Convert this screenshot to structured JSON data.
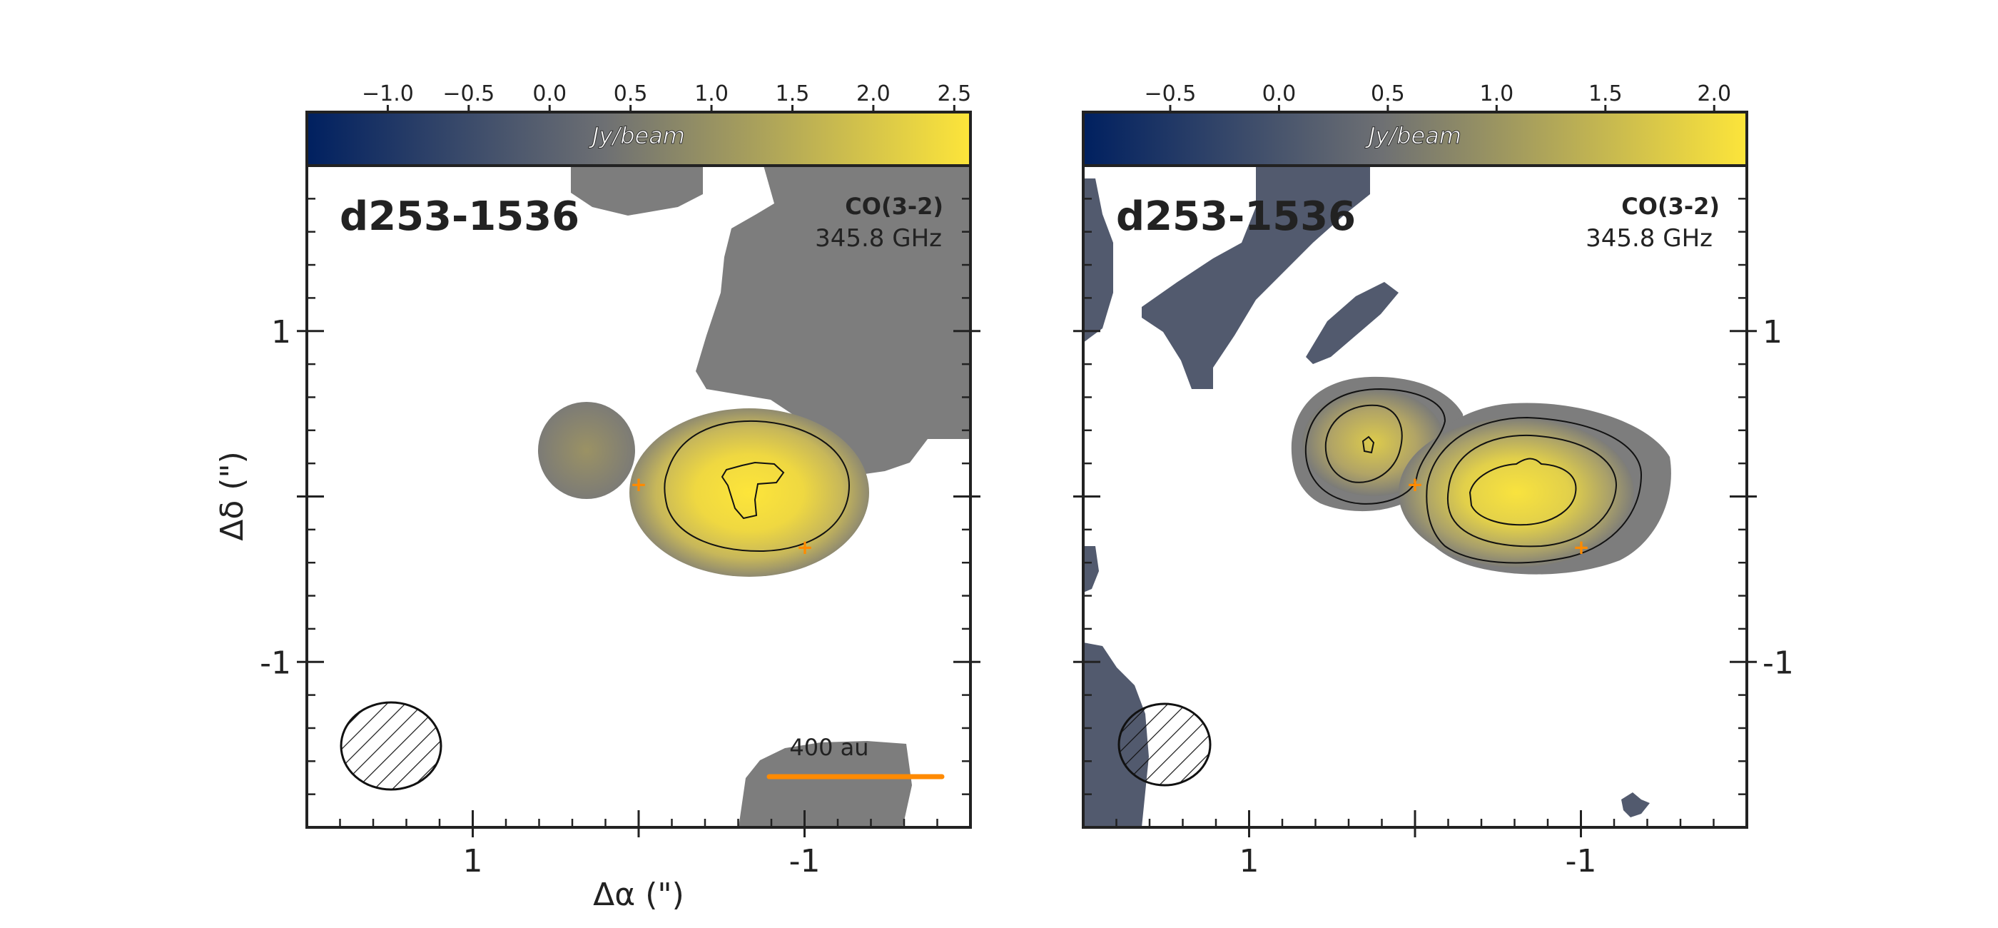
{
  "figure": {
    "xlabel": "Δα (\")",
    "ylabel": "Δδ (\")"
  },
  "colormap": {
    "low": "#002060",
    "mid": "#6e7073",
    "high": "#fde53a",
    "masked_gray": "#7d7d7d",
    "marker": "#ff8a00"
  },
  "chart_data": [
    {
      "type": "heatmap",
      "panel": "left",
      "source_name": "d253-1536",
      "line_label": "CO(3-2)",
      "frequency": "345.8 GHz",
      "colorbar": {
        "unit_label": "Jy/beam",
        "range": [
          -1.5,
          2.6
        ],
        "ticks": [
          -1.0,
          -0.5,
          0.0,
          0.5,
          1.0,
          1.5,
          2.0,
          2.5
        ],
        "tick_labels": [
          "−1.0",
          "−0.5",
          "0.0",
          "0.5",
          "1.0",
          "1.5",
          "2.0",
          "2.5"
        ]
      },
      "x_axis": {
        "range": [
          2.0,
          -2.0
        ],
        "ticks": [
          1,
          -1
        ],
        "tick_labels": [
          "1",
          "-1"
        ]
      },
      "y_axis": {
        "range": [
          -2.0,
          2.0
        ],
        "ticks": [
          1,
          -1
        ],
        "tick_labels": [
          "1",
          "-1"
        ]
      },
      "scale_bar": {
        "label": "400 au",
        "length_arcsec": 0.85,
        "y": -1.7
      },
      "beam": {
        "major_arcsec": 0.6,
        "minor_arcsec": 0.52,
        "center": [
          1.5,
          -1.5
        ]
      },
      "markers": [
        {
          "x": 0.0,
          "y": 0.08
        },
        {
          "x": -1.0,
          "y": -0.3
        }
      ],
      "contours_jy": [
        1.2,
        2.2
      ],
      "emission_peak_jy": 2.5
    },
    {
      "type": "heatmap",
      "panel": "right",
      "source_name": "d253-1536",
      "line_label": "CO(3-2)",
      "frequency": "345.8 GHz",
      "colorbar": {
        "unit_label": "Jy/beam",
        "range": [
          -0.9,
          2.15
        ],
        "ticks": [
          -0.5,
          0.0,
          0.5,
          1.0,
          1.5,
          2.0
        ],
        "tick_labels": [
          "−0.5",
          "0.0",
          "0.5",
          "1.0",
          "1.5",
          "2.0"
        ]
      },
      "x_axis": {
        "range": [
          2.0,
          -2.0
        ],
        "ticks": [
          1,
          -1
        ],
        "tick_labels": [
          "1",
          "-1"
        ]
      },
      "y_axis": {
        "range": [
          -2.0,
          2.0
        ],
        "ticks": [
          1,
          -1
        ],
        "tick_labels": [
          "1",
          "-1"
        ]
      },
      "beam": {
        "major_arcsec": 0.56,
        "minor_arcsec": 0.5,
        "center": [
          1.5,
          -1.5
        ]
      },
      "markers": [
        {
          "x": 0.0,
          "y": 0.08
        },
        {
          "x": -1.0,
          "y": -0.3
        }
      ],
      "contours_jy": [
        0.8,
        1.3,
        1.9
      ],
      "emission_peak_jy": 2.0
    }
  ]
}
